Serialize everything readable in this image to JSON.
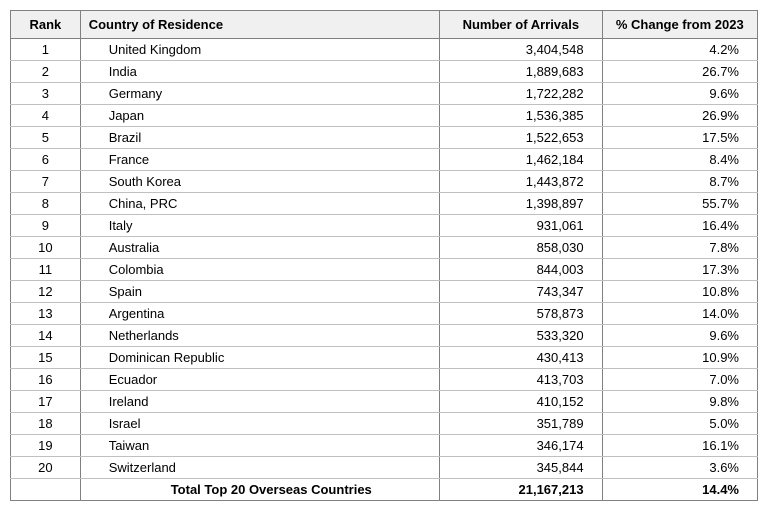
{
  "headers": {
    "rank": "Rank",
    "country": "Country of Residence",
    "arrivals": "Number of Arrivals",
    "change": "% Change from 2023"
  },
  "rows": [
    {
      "rank": "1",
      "country": "United Kingdom",
      "arrivals": "3,404,548",
      "change": "4.2%"
    },
    {
      "rank": "2",
      "country": "India",
      "arrivals": "1,889,683",
      "change": "26.7%"
    },
    {
      "rank": "3",
      "country": "Germany",
      "arrivals": "1,722,282",
      "change": "9.6%"
    },
    {
      "rank": "4",
      "country": "Japan",
      "arrivals": "1,536,385",
      "change": "26.9%"
    },
    {
      "rank": "5",
      "country": "Brazil",
      "arrivals": "1,522,653",
      "change": "17.5%"
    },
    {
      "rank": "6",
      "country": "France",
      "arrivals": "1,462,184",
      "change": "8.4%"
    },
    {
      "rank": "7",
      "country": "South Korea",
      "arrivals": "1,443,872",
      "change": "8.7%"
    },
    {
      "rank": "8",
      "country": "China, PRC",
      "arrivals": "1,398,897",
      "change": "55.7%"
    },
    {
      "rank": "9",
      "country": "Italy",
      "arrivals": "931,061",
      "change": "16.4%"
    },
    {
      "rank": "10",
      "country": "Australia",
      "arrivals": "858,030",
      "change": "7.8%"
    },
    {
      "rank": "11",
      "country": "Colombia",
      "arrivals": "844,003",
      "change": "17.3%"
    },
    {
      "rank": "12",
      "country": "Spain",
      "arrivals": "743,347",
      "change": "10.8%"
    },
    {
      "rank": "13",
      "country": "Argentina",
      "arrivals": "578,873",
      "change": "14.0%"
    },
    {
      "rank": "14",
      "country": "Netherlands",
      "arrivals": "533,320",
      "change": "9.6%"
    },
    {
      "rank": "15",
      "country": "Dominican Republic",
      "arrivals": "430,413",
      "change": "10.9%"
    },
    {
      "rank": "16",
      "country": "Ecuador",
      "arrivals": "413,703",
      "change": "7.0%"
    },
    {
      "rank": "17",
      "country": "Ireland",
      "arrivals": "410,152",
      "change": "9.8%"
    },
    {
      "rank": "18",
      "country": "Israel",
      "arrivals": "351,789",
      "change": "5.0%"
    },
    {
      "rank": "19",
      "country": "Taiwan",
      "arrivals": "346,174",
      "change": "16.1%"
    },
    {
      "rank": "20",
      "country": "Switzerland",
      "arrivals": "345,844",
      "change": "3.6%"
    }
  ],
  "total": {
    "label": "Total Top 20 Overseas Countries",
    "arrivals": "21,167,213",
    "change": "14.4%"
  }
}
